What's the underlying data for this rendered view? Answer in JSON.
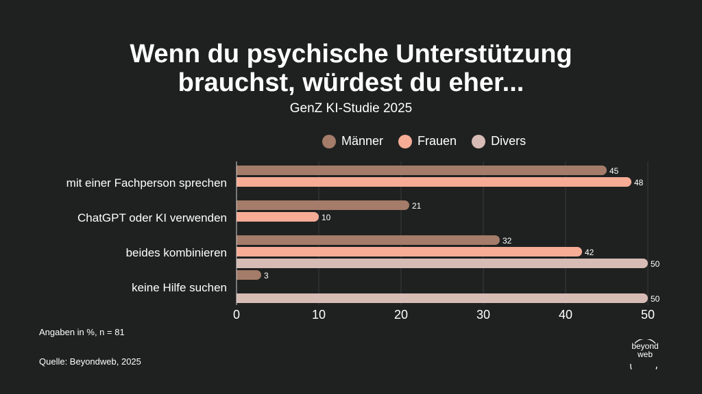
{
  "header": {
    "title_line1": "Wenn du psychische Unterstützung",
    "title_line2": "brauchst, würdest du eher...",
    "subtitle": "GenZ KI-Studie 2025"
  },
  "footer": {
    "note": "Angaben in %, n = 81",
    "source": "Quelle: Beyondweb, 2025"
  },
  "logo": {
    "line1": "beyond",
    "line2": "web"
  },
  "chart_data": {
    "type": "bar",
    "orientation": "horizontal",
    "categories": [
      "mit einer Fachperson sprechen",
      "ChatGPT oder KI verwenden",
      "beides kombinieren",
      "keine Hilfe suchen"
    ],
    "series": [
      {
        "name": "Männer",
        "color": "#a47c69",
        "values": [
          45,
          21,
          32,
          3
        ]
      },
      {
        "name": "Frauen",
        "color": "#f7ac96",
        "values": [
          48,
          10,
          42,
          null
        ]
      },
      {
        "name": "Divers",
        "color": "#d7bcb5",
        "values": [
          null,
          null,
          50,
          50
        ]
      }
    ],
    "xlim": [
      0,
      50
    ],
    "xticks": [
      0,
      10,
      20,
      30,
      40,
      50
    ],
    "grid": true,
    "legend_position": "top"
  }
}
